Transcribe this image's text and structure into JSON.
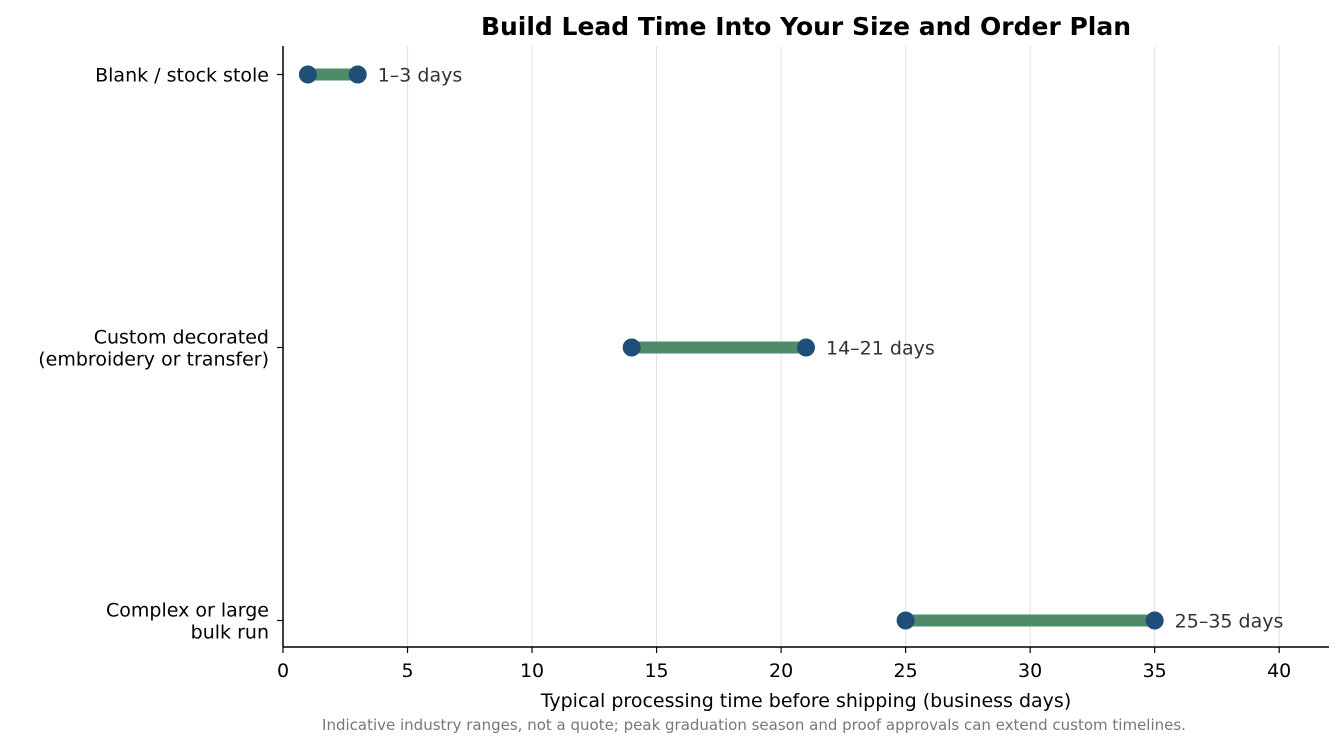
{
  "chart_data": {
    "type": "range",
    "title": "Build Lead Time Into Your Size and Order Plan",
    "xlabel": "Typical processing time before shipping (business days)",
    "footnote": "Indicative industry ranges, not a quote; peak graduation season and proof approvals can extend custom timelines.",
    "xlim": [
      0,
      42
    ],
    "xticks": [
      0,
      5,
      10,
      15,
      20,
      25,
      30,
      35,
      40
    ],
    "grid": "vertical",
    "categories": [
      {
        "label_lines": [
          "Blank / stock stole"
        ],
        "min": 1,
        "max": 3,
        "range_label": "1–3 days"
      },
      {
        "label_lines": [
          "Custom decorated",
          "(embroidery or transfer)"
        ],
        "min": 14,
        "max": 21,
        "range_label": "14–21 days"
      },
      {
        "label_lines": [
          "Complex or large",
          "bulk run"
        ],
        "min": 25,
        "max": 35,
        "range_label": "25–35 days"
      }
    ],
    "colors": {
      "bar": "#4f8a69",
      "endpoint": "#1f4e79",
      "grid": "#e0e0e0",
      "axis": "#000000"
    }
  }
}
